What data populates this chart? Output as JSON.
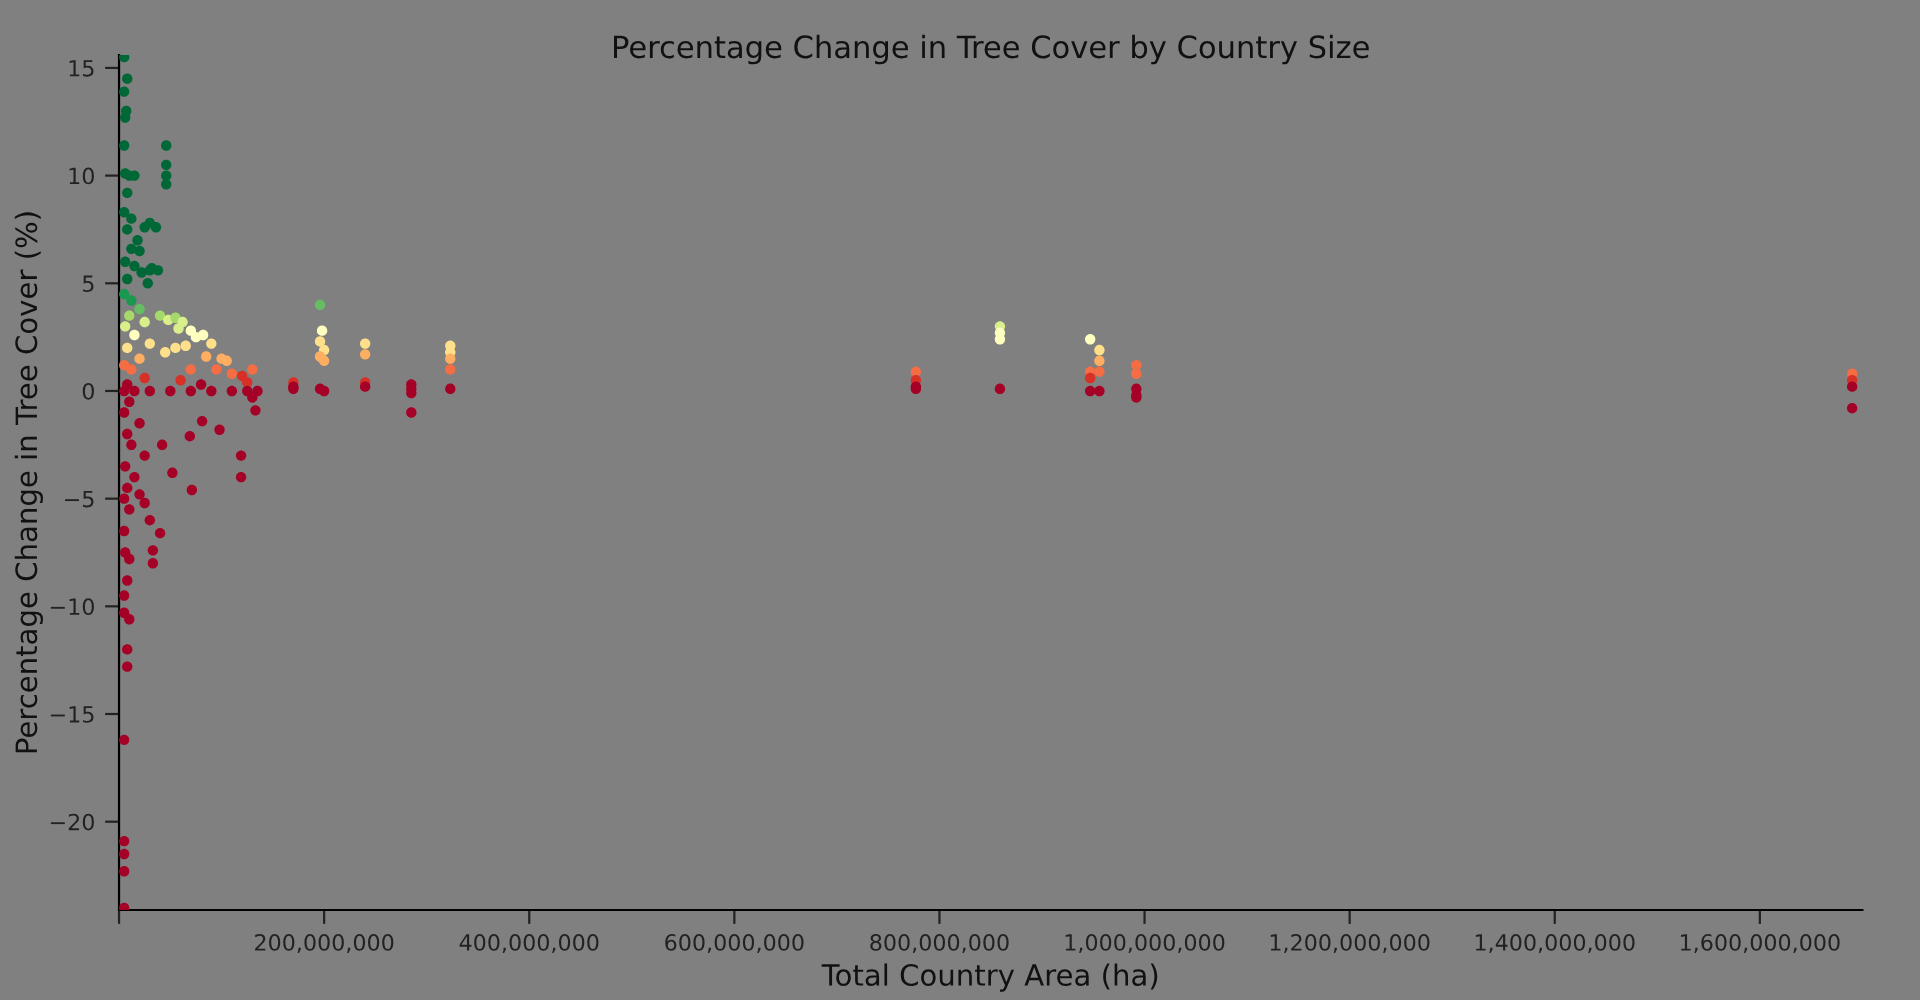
{
  "chart_data": {
    "type": "scatter",
    "title": "Percentage Change in Tree Cover by Country Size",
    "xlabel": "Total Country Area (ha)",
    "ylabel": "Percentage Change in Tree Cover (%)",
    "xlim": [
      0,
      1700000000
    ],
    "ylim": [
      -24.1,
      15.6
    ],
    "xticks": [
      {
        "value": 0,
        "label": null
      },
      {
        "value": 200000000,
        "label": "200,000,000"
      },
      {
        "value": 400000000,
        "label": "400,000,000"
      },
      {
        "value": 600000000,
        "label": "600,000,000"
      },
      {
        "value": 800000000,
        "label": "800,000,000"
      },
      {
        "value": 1000000000,
        "label": "1,000,000,000"
      },
      {
        "value": 1200000000,
        "label": "1,200,000,000"
      },
      {
        "value": 1400000000,
        "label": "1,400,000,000"
      },
      {
        "value": 1600000000,
        "label": "1,600,000,000"
      }
    ],
    "yticks": [
      {
        "value": -20,
        "label": "−20"
      },
      {
        "value": -15,
        "label": "−15"
      },
      {
        "value": -10,
        "label": "−10"
      },
      {
        "value": -5,
        "label": "−5"
      },
      0,
      5,
      10,
      15
    ],
    "grid": false,
    "legend": false,
    "marker": "circle",
    "x": [
      5000000.0,
      8000000.0,
      5000000.0,
      7000000.0,
      6000000.0,
      5000000.0,
      6000000.0,
      10000000.0,
      15000000.0,
      8000000.0,
      5000000.0,
      12000000.0,
      8000000.0,
      18000000.0,
      25000000.0,
      12000000.0,
      20000000.0,
      6000000.0,
      15000000.0,
      22000000.0,
      8000000.0,
      30000000.0,
      5000000.0,
      12000000.0,
      20000000.0,
      10000000.0,
      25000000.0,
      6000000.0,
      15000000.0,
      30000000.0,
      8000000.0,
      20000000.0,
      5000000.0,
      12000000.0,
      25000000.0,
      8000000.0,
      5000000.0,
      15000000.0,
      30000000.0,
      10000000.0,
      5000000.0,
      20000000.0,
      8000000.0,
      12000000.0,
      25000000.0,
      6000000.0,
      15000000.0,
      8000000.0,
      5000000.0,
      10000000.0,
      5000000.0,
      6000000.0,
      8000000.0,
      5000000.0,
      5000000.0,
      10000000.0,
      8000000.0,
      8000000.0,
      5000000.0,
      5000000.0,
      5000000.0,
      5000000.0,
      5000000.0,
      46000000.0,
      46000000.0,
      46000000.0,
      46000000.0,
      30000000.0,
      36000000.0,
      32000000.0,
      38000000.0,
      28000000.0,
      40000000.0,
      48000000.0,
      55000000.0,
      62000000.0,
      58000000.0,
      70000000.0,
      75000000.0,
      82000000.0,
      90000000.0,
      65000000.0,
      85000000.0,
      100000000.0,
      105000000.0,
      55000000.0,
      45000000.0,
      70000000.0,
      95000000.0,
      110000000.0,
      120000000.0,
      60000000.0,
      80000000.0,
      130000000.0,
      125000000.0,
      50000000.0,
      70000000.0,
      90000000.0,
      110000000.0,
      125000000.0,
      135000000.0,
      130000000.0,
      42000000.0,
      69000000.0,
      71000000.0,
      119000000.0,
      119000000.0,
      33000000.0,
      33000000.0,
      40000000.0,
      10000000.0,
      52000000.0,
      81000000.0,
      98000000.0,
      133000000.0,
      30000000.0,
      25000000.0,
      20000000.0,
      170000000.0,
      170000000.0,
      170000000.0,
      196000000.0,
      198000000.0,
      196000000.0,
      200000000.0,
      196000000.0,
      200000000.0,
      196000000.0,
      200000000.0,
      240000000.0,
      240000000.0,
      240000000.0,
      240000000.0,
      285000000.0,
      285000000.0,
      285000000.0,
      285000000.0,
      323000000.0,
      323000000.0,
      323000000.0,
      323000000.0,
      323000000.0,
      777000000.0,
      777000000.0,
      777000000.0,
      777000000.0,
      859000000.0,
      859000000.0,
      859000000.0,
      859000000.0,
      947000000.0,
      947000000.0,
      947000000.0,
      947000000.0,
      956000000.0,
      956000000.0,
      956000000.0,
      956000000.0,
      992000000.0,
      992000000.0,
      992000000.0,
      992000000.0,
      992000000.0,
      1690000000.0,
      1690000000.0,
      1690000000.0,
      1690000000.0
    ],
    "values": [
      15.5,
      14.5,
      13.9,
      13.0,
      12.7,
      11.4,
      10.1,
      10.0,
      10.0,
      9.2,
      8.3,
      8.0,
      7.5,
      7.0,
      7.6,
      6.6,
      6.5,
      6.0,
      5.8,
      5.5,
      5.2,
      5.6,
      4.5,
      4.2,
      3.8,
      3.5,
      3.2,
      3.0,
      2.6,
      2.2,
      2.0,
      1.5,
      1.2,
      1.0,
      0.6,
      0.3,
      0,
      0,
      0,
      -0.5,
      -1.0,
      -1.5,
      -2.0,
      -2.5,
      -3.0,
      -3.5,
      -4.0,
      -4.5,
      -5.0,
      -5.5,
      -6.5,
      -7.5,
      -8.8,
      -9.5,
      -10.3,
      -10.6,
      -12.0,
      -12.8,
      -16.2,
      -20.9,
      -21.5,
      -22.3,
      -24.0,
      11.4,
      10.5,
      10.0,
      9.6,
      7.8,
      7.6,
      5.7,
      5.6,
      5.0,
      3.5,
      3.3,
      3.4,
      3.2,
      2.9,
      2.8,
      2.5,
      2.6,
      2.2,
      2.1,
      1.6,
      1.5,
      1.4,
      2.0,
      1.8,
      1.0,
      1.0,
      0.8,
      0.7,
      0.5,
      0.3,
      1.0,
      0.4,
      0,
      0,
      0,
      0,
      0,
      0,
      -0.3,
      -2.5,
      -2.1,
      -4.6,
      -3.0,
      -4.0,
      -8.0,
      -7.4,
      -6.6,
      -7.8,
      -3.8,
      -1.4,
      -1.8,
      -0.9,
      -6.0,
      -5.2,
      -4.8,
      0.4,
      0.2,
      0.1,
      4.0,
      2.8,
      2.3,
      1.9,
      1.6,
      1.4,
      0.1,
      0.0,
      2.2,
      1.7,
      0.4,
      0.2,
      0.3,
      0.1,
      -0.1,
      -1.0,
      2.1,
      1.8,
      1.5,
      1.0,
      0.1,
      0.9,
      0.5,
      0.2,
      0.1,
      3.0,
      2.7,
      2.4,
      0.1,
      2.4,
      0.9,
      0.6,
      0.0,
      1.9,
      1.4,
      0.9,
      0.0,
      1.2,
      0.8,
      0.1,
      -0.2,
      -0.3,
      0.8,
      0.5,
      0.2,
      -0.8
    ],
    "colors": [
      "#006837",
      "#006837",
      "#006837",
      "#006837",
      "#006837",
      "#006837",
      "#006837",
      "#006837",
      "#006837",
      "#006837",
      "#006837",
      "#006837",
      "#006837",
      "#006837",
      "#006837",
      "#006837",
      "#006837",
      "#006837",
      "#006837",
      "#006837",
      "#006837",
      "#006837",
      "#1a9850",
      "#1a9850",
      "#66bd63",
      "#a6d96a",
      "#d9ef8b",
      "#d9ef8b",
      "#ffffbf",
      "#fee08b",
      "#fee08b",
      "#fdae61",
      "#f46d43",
      "#f46d43",
      "#d73027",
      "#a50026",
      "#a50026",
      "#a50026",
      "#a50026",
      "#a50026",
      "#a50026",
      "#a50026",
      "#a50026",
      "#a50026",
      "#a50026",
      "#a50026",
      "#a50026",
      "#a50026",
      "#a50026",
      "#a50026",
      "#a50026",
      "#a50026",
      "#a50026",
      "#a50026",
      "#a50026",
      "#a50026",
      "#a50026",
      "#a50026",
      "#a50026",
      "#a50026",
      "#a50026",
      "#a50026",
      "#a50026",
      "#006837",
      "#006837",
      "#006837",
      "#006837",
      "#006837",
      "#006837",
      "#006837",
      "#006837",
      "#006837",
      "#a6d96a",
      "#d9ef8b",
      "#a6d96a",
      "#d9ef8b",
      "#d9ef8b",
      "#ffffbf",
      "#ffffbf",
      "#ffffbf",
      "#fee08b",
      "#fee08b",
      "#fdae61",
      "#fdae61",
      "#fdae61",
      "#fee08b",
      "#fee08b",
      "#f46d43",
      "#f46d43",
      "#f46d43",
      "#d73027",
      "#d73027",
      "#a50026",
      "#f46d43",
      "#d73027",
      "#a50026",
      "#a50026",
      "#a50026",
      "#a50026",
      "#a50026",
      "#a50026",
      "#a50026",
      "#a50026",
      "#a50026",
      "#a50026",
      "#a50026",
      "#a50026",
      "#a50026",
      "#a50026",
      "#a50026",
      "#a50026",
      "#a50026",
      "#a50026",
      "#a50026",
      "#a50026",
      "#a50026",
      "#a50026",
      "#a50026",
      "#d73027",
      "#a50026",
      "#a50026",
      "#66bd63",
      "#ffffbf",
      "#fee08b",
      "#fee08b",
      "#fdae61",
      "#fdae61",
      "#a50026",
      "#a50026",
      "#fee08b",
      "#fdae61",
      "#d73027",
      "#a50026",
      "#a50026",
      "#a50026",
      "#a50026",
      "#a50026",
      "#fee08b",
      "#fee08b",
      "#fdae61",
      "#f46d43",
      "#a50026",
      "#f46d43",
      "#d73027",
      "#a50026",
      "#a50026",
      "#d9ef8b",
      "#ffffbf",
      "#ffffbf",
      "#a50026",
      "#ffffbf",
      "#f46d43",
      "#d73027",
      "#a50026",
      "#fee08b",
      "#fdae61",
      "#f46d43",
      "#a50026",
      "#f46d43",
      "#f46d43",
      "#a50026",
      "#a50026",
      "#a50026",
      "#f46d43",
      "#d73027",
      "#a50026",
      "#a50026"
    ]
  }
}
